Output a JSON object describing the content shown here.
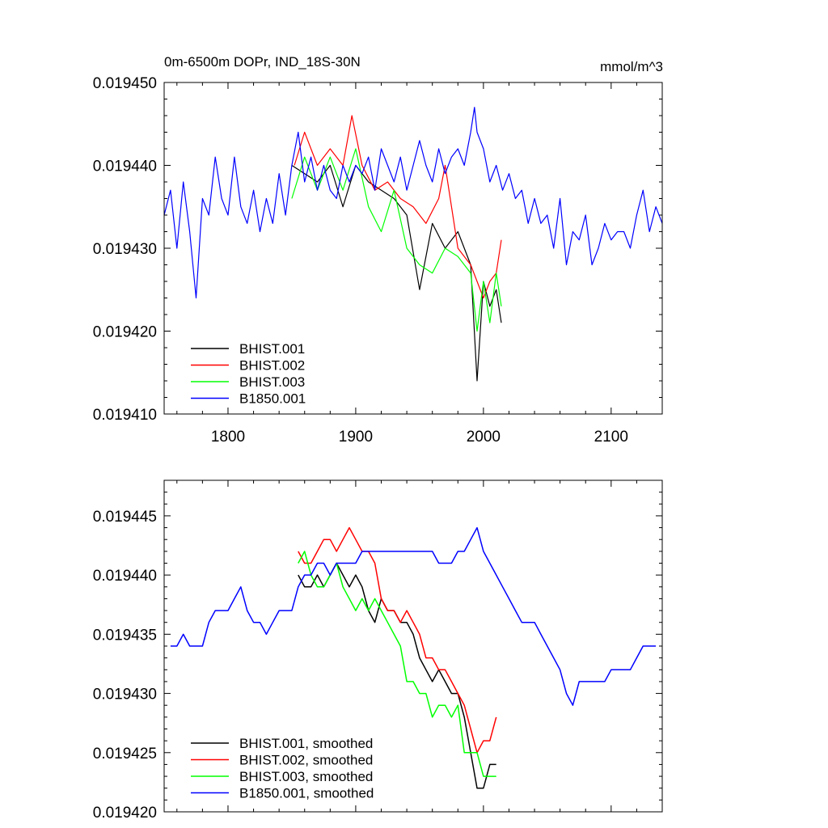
{
  "chart_data": [
    {
      "type": "line",
      "title": "0m-6500m DOPr, IND_18S-30N",
      "units": "mmol/m^3",
      "xlim": [
        1750,
        2140
      ],
      "ylim": [
        0.01941,
        0.01945
      ],
      "x_ticks": [
        1800,
        1900,
        2000,
        2100
      ],
      "x_tick_labels": [
        "1800",
        "1900",
        "2000",
        "2100"
      ],
      "y_ticks": [
        0.01941,
        0.01942,
        0.01943,
        0.01944,
        0.01945
      ],
      "y_tick_labels": [
        "0.019410",
        "0.019420",
        "0.019430",
        "0.019440",
        "0.019450"
      ],
      "legend_position": "bottom-left",
      "series": [
        {
          "name": "BHIST.001",
          "color": "#000000",
          "x": [
            1850,
            1860,
            1870,
            1880,
            1890,
            1900,
            1910,
            1920,
            1930,
            1940,
            1950,
            1960,
            1970,
            1980,
            1990,
            1995,
            2000,
            2005,
            2010,
            2014
          ],
          "y": [
            0.01944,
            0.019439,
            0.019438,
            0.01944,
            0.019435,
            0.01944,
            0.019438,
            0.019437,
            0.019436,
            0.019434,
            0.019425,
            0.019433,
            0.01943,
            0.019432,
            0.019428,
            0.019414,
            0.019426,
            0.019423,
            0.019425,
            0.019421
          ]
        },
        {
          "name": "BHIST.002",
          "color": "#ff0000",
          "x": [
            1852,
            1860,
            1870,
            1880,
            1890,
            1897,
            1905,
            1915,
            1925,
            1935,
            1945,
            1955,
            1965,
            1970,
            1980,
            1990,
            2000,
            2005,
            2010,
            2014
          ],
          "y": [
            0.01944,
            0.019444,
            0.01944,
            0.019442,
            0.01944,
            0.019446,
            0.01944,
            0.019437,
            0.019438,
            0.019436,
            0.019435,
            0.019433,
            0.019436,
            0.01944,
            0.01943,
            0.019428,
            0.019424,
            0.019426,
            0.019427,
            0.019431
          ]
        },
        {
          "name": "BHIST.003",
          "color": "#00ff00",
          "x": [
            1850,
            1860,
            1870,
            1880,
            1890,
            1900,
            1910,
            1920,
            1930,
            1940,
            1950,
            1960,
            1970,
            1980,
            1990,
            1995,
            2000,
            2005,
            2010,
            2014
          ],
          "y": [
            0.019436,
            0.019441,
            0.019437,
            0.019441,
            0.019437,
            0.019442,
            0.019435,
            0.019432,
            0.019437,
            0.01943,
            0.019428,
            0.019427,
            0.01943,
            0.019429,
            0.019427,
            0.01942,
            0.019426,
            0.019421,
            0.019427,
            0.019423
          ]
        },
        {
          "name": "B1850.001",
          "color": "#0000ff",
          "x": [
            1750,
            1755,
            1760,
            1765,
            1770,
            1775,
            1780,
            1785,
            1790,
            1795,
            1800,
            1805,
            1810,
            1815,
            1820,
            1825,
            1830,
            1835,
            1840,
            1845,
            1850,
            1855,
            1860,
            1865,
            1870,
            1875,
            1880,
            1885,
            1890,
            1895,
            1900,
            1905,
            1910,
            1915,
            1920,
            1925,
            1930,
            1935,
            1940,
            1945,
            1950,
            1955,
            1960,
            1965,
            1970,
            1975,
            1980,
            1985,
            1990,
            1993,
            1995,
            2000,
            2005,
            2010,
            2015,
            2020,
            2025,
            2030,
            2035,
            2040,
            2045,
            2050,
            2055,
            2060,
            2065,
            2070,
            2075,
            2080,
            2085,
            2090,
            2095,
            2100,
            2105,
            2110,
            2115,
            2120,
            2125,
            2130,
            2135,
            2140
          ],
          "y": [
            0.019434,
            0.019437,
            0.01943,
            0.019438,
            0.019432,
            0.019424,
            0.019436,
            0.019434,
            0.019441,
            0.019436,
            0.019434,
            0.019441,
            0.019435,
            0.019433,
            0.019437,
            0.019432,
            0.019436,
            0.019433,
            0.019439,
            0.019434,
            0.01944,
            0.019444,
            0.019438,
            0.019441,
            0.019437,
            0.01944,
            0.019437,
            0.019436,
            0.01944,
            0.019438,
            0.01944,
            0.019439,
            0.019441,
            0.019437,
            0.019442,
            0.01944,
            0.019438,
            0.019441,
            0.019437,
            0.01944,
            0.019443,
            0.01944,
            0.019438,
            0.019442,
            0.019439,
            0.019441,
            0.019442,
            0.01944,
            0.019444,
            0.019447,
            0.019444,
            0.019442,
            0.019438,
            0.01944,
            0.019437,
            0.019439,
            0.019436,
            0.019437,
            0.019433,
            0.019436,
            0.019433,
            0.019434,
            0.01943,
            0.019436,
            0.019428,
            0.019432,
            0.019431,
            0.019434,
            0.019428,
            0.01943,
            0.019433,
            0.019431,
            0.019432,
            0.019432,
            0.01943,
            0.019434,
            0.019437,
            0.019432,
            0.019435,
            0.019433
          ]
        }
      ]
    },
    {
      "type": "line",
      "xlim": [
        1750,
        2140
      ],
      "ylim": [
        0.01942,
        0.019448
      ],
      "x_ticks": [
        1800,
        1900,
        2000,
        2100
      ],
      "y_ticks": [
        0.01942,
        0.019425,
        0.01943,
        0.019435,
        0.01944,
        0.019445
      ],
      "y_tick_labels": [
        "0.019420",
        "0.019425",
        "0.019430",
        "0.019435",
        "0.019440",
        "0.019445"
      ],
      "legend_position": "bottom-left",
      "series": [
        {
          "name": "BHIST.001, smoothed",
          "color": "#000000",
          "x": [
            1855,
            1860,
            1865,
            1870,
            1875,
            1880,
            1885,
            1890,
            1895,
            1900,
            1905,
            1910,
            1915,
            1920,
            1925,
            1930,
            1935,
            1940,
            1945,
            1950,
            1955,
            1960,
            1965,
            1970,
            1975,
            1980,
            1985,
            1990,
            1995,
            2000,
            2005,
            2010
          ],
          "y": [
            0.01944,
            0.019439,
            0.019439,
            0.01944,
            0.019439,
            0.01944,
            0.019441,
            0.01944,
            0.019439,
            0.01944,
            0.019439,
            0.019437,
            0.019436,
            0.019438,
            0.019437,
            0.019437,
            0.019436,
            0.019436,
            0.019435,
            0.019433,
            0.019432,
            0.019431,
            0.019432,
            0.019431,
            0.01943,
            0.01943,
            0.019428,
            0.019425,
            0.019422,
            0.019422,
            0.019424,
            0.019424
          ]
        },
        {
          "name": "BHIST.002, smoothed",
          "color": "#ff0000",
          "x": [
            1855,
            1860,
            1865,
            1870,
            1875,
            1880,
            1885,
            1890,
            1895,
            1900,
            1905,
            1910,
            1915,
            1920,
            1925,
            1930,
            1935,
            1940,
            1945,
            1950,
            1955,
            1960,
            1965,
            1970,
            1975,
            1980,
            1985,
            1990,
            1995,
            2000,
            2005,
            2010
          ],
          "y": [
            0.019442,
            0.019441,
            0.019441,
            0.019442,
            0.019443,
            0.019443,
            0.019442,
            0.019443,
            0.019444,
            0.019443,
            0.019442,
            0.019442,
            0.019441,
            0.019438,
            0.019437,
            0.019437,
            0.019436,
            0.019437,
            0.019436,
            0.019435,
            0.019433,
            0.019433,
            0.019432,
            0.019432,
            0.019431,
            0.01943,
            0.019429,
            0.019427,
            0.019425,
            0.019426,
            0.019426,
            0.019428
          ]
        },
        {
          "name": "BHIST.003, smoothed",
          "color": "#00ff00",
          "x": [
            1855,
            1860,
            1865,
            1870,
            1875,
            1880,
            1885,
            1890,
            1895,
            1900,
            1905,
            1910,
            1915,
            1920,
            1925,
            1930,
            1935,
            1940,
            1945,
            1950,
            1955,
            1960,
            1965,
            1970,
            1975,
            1980,
            1985,
            1990,
            1995,
            2000,
            2005,
            2010
          ],
          "y": [
            0.019441,
            0.019442,
            0.01944,
            0.019439,
            0.019439,
            0.01944,
            0.019441,
            0.019439,
            0.019438,
            0.019437,
            0.019438,
            0.019437,
            0.019438,
            0.019437,
            0.019436,
            0.019435,
            0.019434,
            0.019431,
            0.019431,
            0.01943,
            0.01943,
            0.019428,
            0.019429,
            0.019429,
            0.019428,
            0.019429,
            0.019425,
            0.019425,
            0.019425,
            0.019423,
            0.019423,
            0.019423
          ]
        },
        {
          "name": "B1850.001, smoothed",
          "color": "#0000ff",
          "x": [
            1755,
            1760,
            1765,
            1770,
            1775,
            1780,
            1785,
            1790,
            1795,
            1800,
            1805,
            1810,
            1815,
            1820,
            1825,
            1830,
            1835,
            1840,
            1845,
            1850,
            1855,
            1860,
            1865,
            1870,
            1875,
            1880,
            1885,
            1890,
            1895,
            1900,
            1905,
            1910,
            1915,
            1920,
            1925,
            1930,
            1935,
            1940,
            1945,
            1950,
            1955,
            1960,
            1965,
            1970,
            1975,
            1980,
            1985,
            1990,
            1995,
            2000,
            2005,
            2010,
            2015,
            2020,
            2025,
            2030,
            2035,
            2040,
            2045,
            2050,
            2055,
            2060,
            2065,
            2070,
            2075,
            2080,
            2085,
            2090,
            2095,
            2100,
            2105,
            2110,
            2115,
            2120,
            2125,
            2130,
            2135
          ],
          "y": [
            0.019434,
            0.019434,
            0.019435,
            0.019434,
            0.019434,
            0.019434,
            0.019436,
            0.019437,
            0.019437,
            0.019437,
            0.019438,
            0.019439,
            0.019437,
            0.019436,
            0.019436,
            0.019435,
            0.019436,
            0.019437,
            0.019437,
            0.019437,
            0.019439,
            0.01944,
            0.01944,
            0.019441,
            0.019441,
            0.01944,
            0.019441,
            0.019441,
            0.019441,
            0.019441,
            0.019442,
            0.019442,
            0.019442,
            0.019442,
            0.019442,
            0.019442,
            0.019442,
            0.019442,
            0.019442,
            0.019442,
            0.019442,
            0.019442,
            0.019441,
            0.019441,
            0.019441,
            0.019442,
            0.019442,
            0.019443,
            0.019444,
            0.019442,
            0.019441,
            0.01944,
            0.019439,
            0.019438,
            0.019437,
            0.019436,
            0.019436,
            0.019436,
            0.019435,
            0.019434,
            0.019433,
            0.019432,
            0.01943,
            0.019429,
            0.019431,
            0.019431,
            0.019431,
            0.019431,
            0.019431,
            0.019432,
            0.019432,
            0.019432,
            0.019432,
            0.019433,
            0.019434,
            0.019434,
            0.019434
          ]
        }
      ]
    }
  ]
}
